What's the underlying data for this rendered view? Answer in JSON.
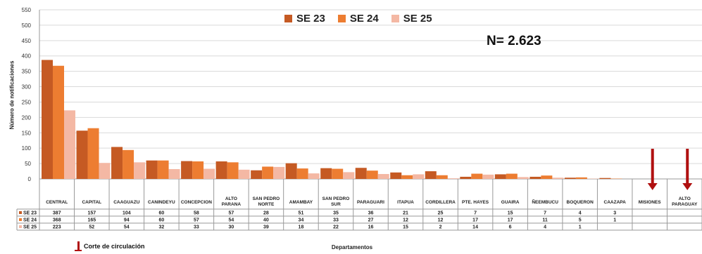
{
  "chart_data": {
    "type": "bar",
    "xlabel": "Departamentos",
    "ylabel": "Número de notificaciones",
    "ylim": [
      0,
      550
    ],
    "yticks": [
      0,
      50,
      100,
      150,
      200,
      250,
      300,
      350,
      400,
      450,
      500,
      550
    ],
    "grid": true,
    "legend_position": "top-center",
    "categories": [
      "CENTRAL",
      "CAPITAL",
      "CAAGUAZU",
      "CANINDEYU",
      "CONCEPCION",
      "ALTO PARANA",
      "SAN PEDRO NORTE",
      "AMAMBAY",
      "SAN PEDRO SUR",
      "PARAGUARI",
      "ITAPUA",
      "CORDILLERA",
      "PTE. HAYES",
      "GUAIRA",
      "ÑEEMBUCU",
      "BOQUERON",
      "CAAZAPA",
      "MISIONES",
      "ALTO PARAGUAY"
    ],
    "series": [
      {
        "name": "SE 23",
        "color": "#c55a23",
        "values": [
          387,
          157,
          104,
          60,
          58,
          57,
          28,
          51,
          35,
          36,
          21,
          25,
          7,
          15,
          7,
          4,
          3,
          null,
          null
        ]
      },
      {
        "name": "SE 24",
        "color": "#ed7d31",
        "values": [
          368,
          165,
          94,
          60,
          57,
          54,
          40,
          34,
          33,
          27,
          12,
          12,
          17,
          17,
          11,
          5,
          1,
          null,
          null
        ]
      },
      {
        "name": "SE 25",
        "color": "#f4b8a4",
        "values": [
          223,
          52,
          54,
          32,
          33,
          30,
          39,
          18,
          22,
          16,
          15,
          2,
          14,
          6,
          4,
          1,
          null,
          null,
          null
        ]
      }
    ],
    "annotations": {
      "total": "N= 2.623",
      "marker_note": "Corte de circulación",
      "marked_categories": [
        "MISIONES",
        "ALTO PARAGUAY"
      ],
      "marker_color": "#b01010"
    }
  }
}
